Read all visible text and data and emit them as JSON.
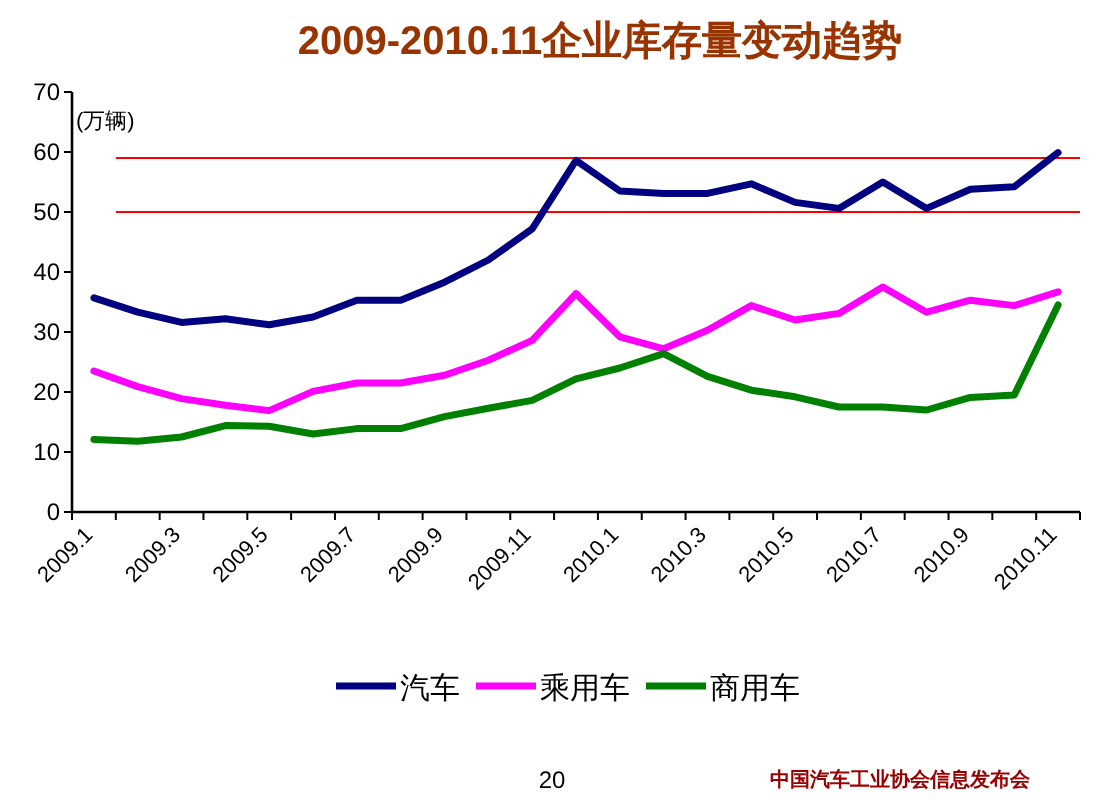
{
  "chart_data": {
    "type": "line",
    "title": "2009-2010.11企业库存量变动趋势",
    "ylabel": "(万辆)",
    "categories": [
      "2009.1",
      null,
      "2009.3",
      null,
      "2009.5",
      null,
      "2009.7",
      null,
      "2009.9",
      null,
      "2009.11",
      null,
      "2010.1",
      null,
      "2010.3",
      null,
      "2010.5",
      null,
      "2010.7",
      null,
      "2010.9",
      null,
      "2010.11"
    ],
    "series": [
      {
        "name": "汽车",
        "color": "#000080",
        "values": [
          35.7,
          33.3,
          31.6,
          32.2,
          31.2,
          32.5,
          35.3,
          35.3,
          38.3,
          42,
          47.2,
          58.6,
          53.5,
          53.1,
          53.1,
          54.7,
          51.6,
          50.6,
          55.0,
          50.6,
          53.8,
          54.2,
          59.9
        ]
      },
      {
        "name": "乘用车",
        "color": "#ff00ff",
        "values": [
          23.5,
          20.9,
          18.9,
          17.8,
          16.9,
          20.1,
          21.5,
          21.5,
          22.8,
          25.3,
          28.6,
          36.4,
          29.2,
          27.2,
          30.3,
          34.4,
          32.0,
          33.1,
          37.5,
          33.3,
          35.3,
          34.4,
          36.7
        ]
      },
      {
        "name": "商用车",
        "color": "#008000",
        "values": [
          12.1,
          11.8,
          12.5,
          14.4,
          14.3,
          13.0,
          13.9,
          13.9,
          15.9,
          17.3,
          18.6,
          22.2,
          24.0,
          26.4,
          22.6,
          20.3,
          19.2,
          17.5,
          17.5,
          17.0,
          19.1,
          19.5,
          34.5
        ]
      }
    ],
    "ylim": [
      0,
      70
    ],
    "yticks": [
      0,
      10,
      20,
      30,
      40,
      50,
      60,
      70
    ],
    "ref_lines": [
      {
        "axis": "y",
        "value": 59,
        "color": "#ff0000"
      },
      {
        "axis": "y",
        "value": 50,
        "color": "#ff0000"
      }
    ],
    "legend": "bottom",
    "grid": false,
    "annotations": [
      "20",
      "中国汽车工业协会信息发布会"
    ]
  }
}
